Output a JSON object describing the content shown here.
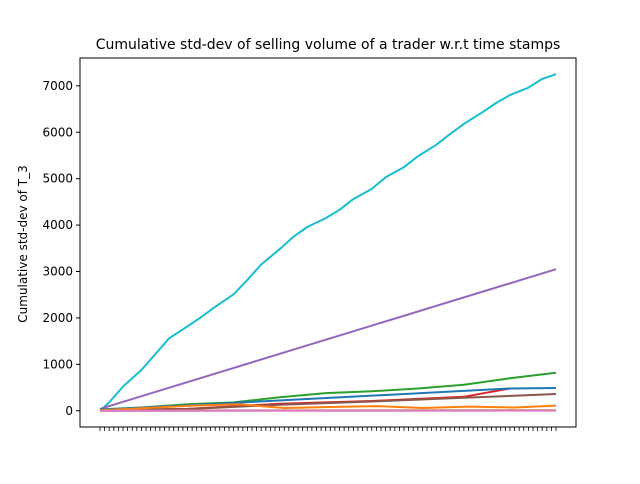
{
  "chart_data": {
    "type": "line",
    "title": "Cumulative std-dev of selling volume of a trader w.r.t time stamps",
    "xlabel": "",
    "ylabel": "Cumulative std-dev of T_3",
    "ylim": [
      -350,
      7600
    ],
    "yticks": [
      0,
      1000,
      2000,
      3000,
      4000,
      5000,
      6000,
      7000
    ],
    "ytick_labels": [
      "0",
      "1000",
      "2000",
      "3000",
      "4000",
      "5000",
      "6000",
      "7000"
    ],
    "x_points": 100,
    "legend": "none",
    "grid": false,
    "colors": {
      "blue": "#1f77b4",
      "orange": "#ff7f0e",
      "green": "#2ca02c",
      "red": "#d62728",
      "purple": "#9467bd",
      "brown": "#8c564b",
      "pink": "#e377c2",
      "gray": "#7f7f7f",
      "olive": "#bcbd22",
      "cyan": "#17becf"
    },
    "series": [
      {
        "color": "#17becf",
        "x": [
          0,
          2,
          5,
          9,
          12,
          15,
          19,
          22,
          25,
          29,
          32,
          35,
          39,
          42,
          45,
          49,
          52,
          55,
          59,
          62,
          66,
          69,
          73,
          76,
          79,
          83,
          86,
          89,
          93,
          96,
          99
        ],
        "values": [
          0,
          180,
          520,
          880,
          1220,
          1560,
          1820,
          2020,
          2240,
          2510,
          2820,
          3150,
          3480,
          3750,
          3960,
          4150,
          4330,
          4560,
          4780,
          5030,
          5250,
          5480,
          5730,
          5960,
          6180,
          6430,
          6630,
          6800,
          6960,
          7150,
          7250
        ]
      },
      {
        "color": "#9467bd",
        "x": [
          0,
          99
        ],
        "values": [
          40,
          3050
        ]
      },
      {
        "color": "#2ca02c",
        "x": [
          0,
          9,
          19,
          29,
          39,
          49,
          59,
          69,
          79,
          89,
          99
        ],
        "values": [
          30,
          70,
          140,
          180,
          290,
          380,
          420,
          480,
          560,
          700,
          820
        ]
      },
      {
        "color": "#d62728",
        "x": [
          0,
          19,
          39,
          59,
          79,
          89
        ],
        "values": [
          20,
          40,
          150,
          210,
          300,
          480
        ]
      },
      {
        "color": "#1f77b4",
        "x": [
          0,
          89,
          99
        ],
        "values": [
          20,
          480,
          490
        ]
      },
      {
        "color": "#8c564b",
        "x": [
          0,
          19,
          39,
          59,
          79,
          99
        ],
        "values": [
          15,
          35,
          130,
          200,
          280,
          360
        ]
      },
      {
        "color": "#ff7f0e",
        "x": [
          0,
          10,
          20,
          30,
          40,
          50,
          60,
          70,
          80,
          90,
          99
        ],
        "values": [
          10,
          60,
          110,
          140,
          60,
          80,
          100,
          60,
          90,
          70,
          110
        ]
      },
      {
        "color": "#bcbd22",
        "x": [
          0,
          99
        ],
        "values": [
          5,
          15
        ]
      },
      {
        "color": "#7f7f7f",
        "x": [
          0,
          99
        ],
        "values": [
          2,
          5
        ]
      },
      {
        "color": "#e377c2",
        "x": [
          0,
          99
        ],
        "values": [
          1,
          3
        ]
      }
    ]
  }
}
